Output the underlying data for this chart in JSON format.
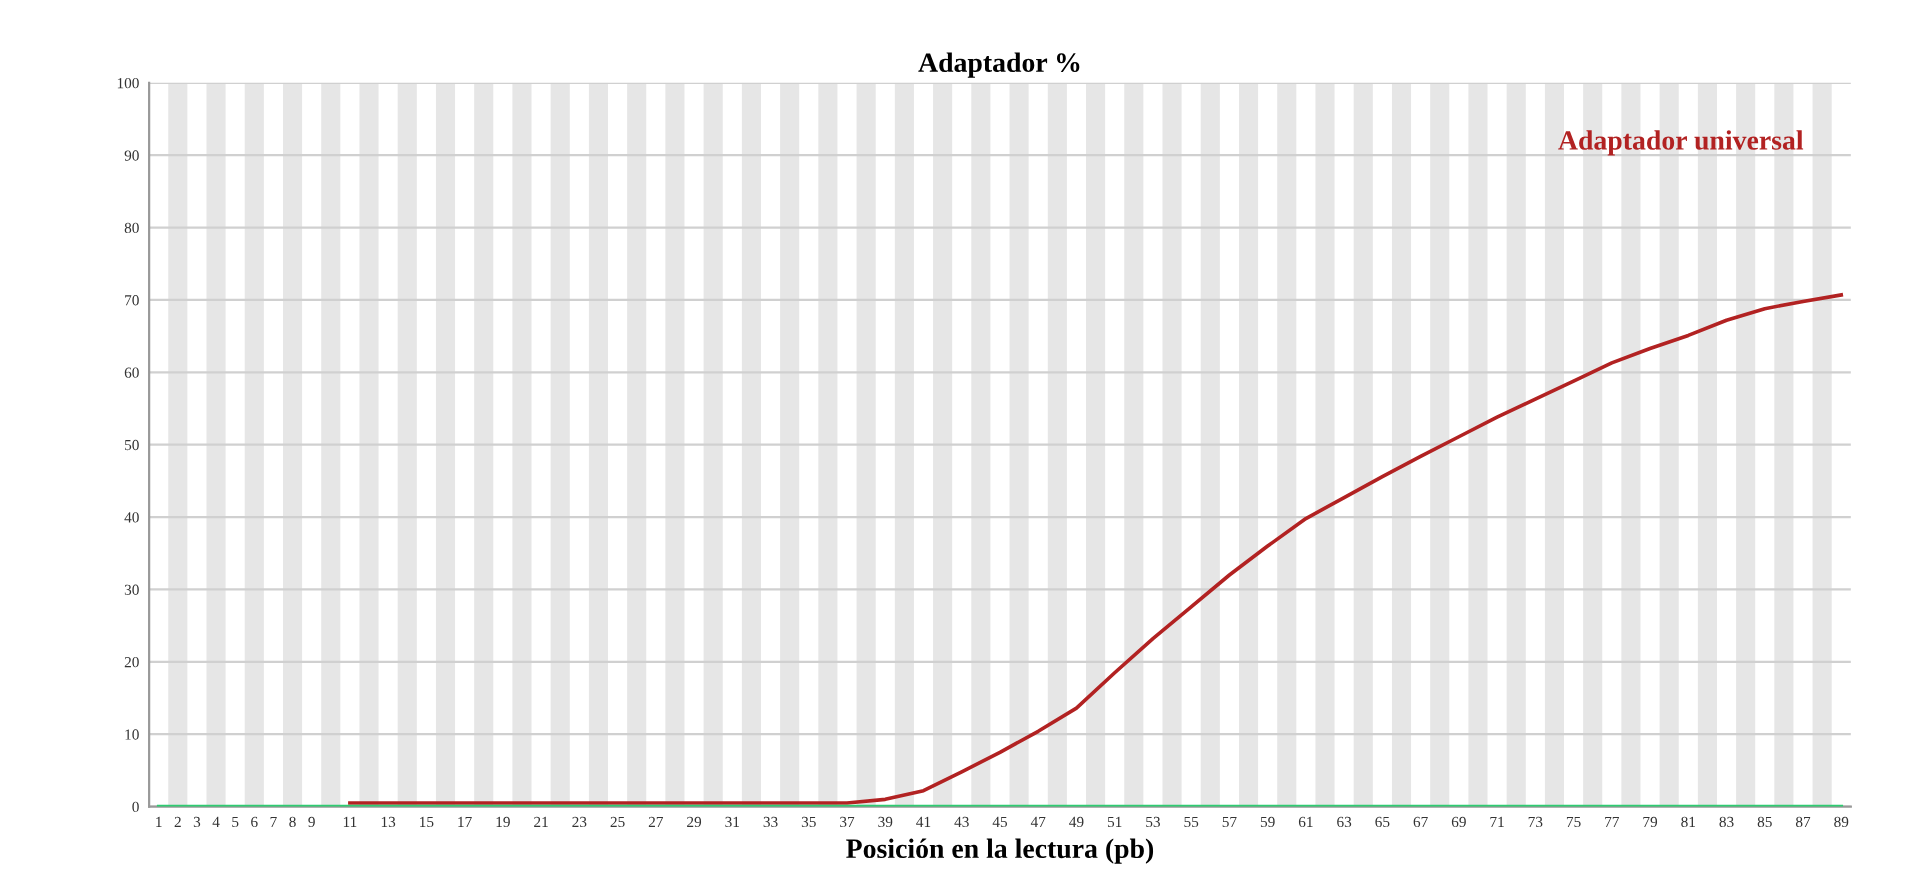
{
  "chart_data": {
    "type": "line",
    "title": "Adaptador %",
    "xlabel": "Posición en la lectura (pb)",
    "x": [
      1,
      2,
      3,
      4,
      5,
      6,
      7,
      8,
      9,
      11,
      13,
      15,
      17,
      19,
      21,
      23,
      25,
      27,
      29,
      31,
      33,
      35,
      37,
      39,
      41,
      43,
      45,
      47,
      49,
      51,
      53,
      55,
      57,
      59,
      61,
      63,
      65,
      67,
      69,
      71,
      73,
      75,
      77,
      79,
      81,
      83,
      85,
      87,
      89
    ],
    "series": [
      {
        "name": "Adaptador universal",
        "color": "#b22222",
        "values": [
          null,
          null,
          null,
          null,
          null,
          null,
          null,
          null,
          null,
          0.5,
          0.5,
          0.5,
          0.5,
          0.5,
          0.5,
          0.5,
          0.5,
          0.5,
          0.5,
          0.5,
          0.5,
          0.5,
          0.5,
          1.0,
          2.2,
          4.8,
          7.5,
          10.4,
          13.6,
          18.5,
          23.2,
          27.6,
          32,
          36,
          39.8,
          42.7,
          45.6,
          48.4,
          51.1,
          53.8,
          56.3,
          58.8,
          61.3,
          63.3,
          65.1,
          67.2,
          68.8,
          69.8,
          70.7
        ]
      },
      {
        "color": "#2ecc71",
        "values": [
          0,
          0,
          0,
          0,
          0,
          0,
          0,
          0,
          0,
          0,
          0,
          0,
          0,
          0,
          0,
          0,
          0,
          0,
          0,
          0,
          0,
          0,
          0,
          0,
          0,
          0,
          0,
          0,
          0,
          0,
          0,
          0,
          0,
          0,
          0,
          0,
          0,
          0,
          0,
          0,
          0,
          0,
          0,
          0,
          0,
          0,
          0,
          0,
          0
        ]
      }
    ],
    "xlim": [
      0.5,
      89.5
    ],
    "xticks": [
      1,
      2,
      3,
      4,
      5,
      6,
      7,
      8,
      9,
      11,
      13,
      15,
      17,
      19,
      21,
      23,
      25,
      27,
      29,
      31,
      33,
      35,
      37,
      39,
      41,
      43,
      45,
      47,
      49,
      51,
      53,
      55,
      57,
      59,
      61,
      63,
      65,
      67,
      69,
      71,
      73,
      75,
      77,
      79,
      81,
      83,
      85,
      87,
      89
    ],
    "ylim": [
      0,
      100
    ],
    "yticks": [
      0,
      10,
      20,
      30,
      40,
      50,
      60,
      70,
      80,
      90,
      100
    ],
    "grid": "y",
    "legend": "top right",
    "marker": "none",
    "line_style": "solid",
    "bands": [
      {
        "axis": "x",
        "from": 1.5,
        "to": 2.5,
        "color": "#e6e6e6"
      },
      {
        "axis": "x",
        "from": 3.5,
        "to": 4.5,
        "color": "#e6e6e6"
      },
      {
        "axis": "x",
        "from": 5.5,
        "to": 6.5,
        "color": "#e6e6e6"
      },
      {
        "axis": "x",
        "from": 7.5,
        "to": 8.5,
        "color": "#e6e6e6"
      },
      {
        "axis": "x",
        "from": 9.5,
        "to": 10.5,
        "color": "#e6e6e6"
      },
      {
        "axis": "x",
        "from": 11.5,
        "to": 12.5,
        "color": "#e6e6e6"
      },
      {
        "axis": "x",
        "from": 13.5,
        "to": 14.5,
        "color": "#e6e6e6"
      },
      {
        "axis": "x",
        "from": 15.5,
        "to": 16.5,
        "color": "#e6e6e6"
      },
      {
        "axis": "x",
        "from": 17.5,
        "to": 18.5,
        "color": "#e6e6e6"
      },
      {
        "axis": "x",
        "from": 19.5,
        "to": 20.5,
        "color": "#e6e6e6"
      },
      {
        "axis": "x",
        "from": 21.5,
        "to": 22.5,
        "color": "#e6e6e6"
      },
      {
        "axis": "x",
        "from": 23.5,
        "to": 24.5,
        "color": "#e6e6e6"
      },
      {
        "axis": "x",
        "from": 25.5,
        "to": 26.5,
        "color": "#e6e6e6"
      },
      {
        "axis": "x",
        "from": 27.5,
        "to": 28.5,
        "color": "#e6e6e6"
      },
      {
        "axis": "x",
        "from": 29.5,
        "to": 30.5,
        "color": "#e6e6e6"
      },
      {
        "axis": "x",
        "from": 31.5,
        "to": 32.5,
        "color": "#e6e6e6"
      },
      {
        "axis": "x",
        "from": 33.5,
        "to": 34.5,
        "color": "#e6e6e6"
      },
      {
        "axis": "x",
        "from": 35.5,
        "to": 36.5,
        "color": "#e6e6e6"
      },
      {
        "axis": "x",
        "from": 37.5,
        "to": 38.5,
        "color": "#e6e6e6"
      },
      {
        "axis": "x",
        "from": 39.5,
        "to": 40.5,
        "color": "#e6e6e6"
      },
      {
        "axis": "x",
        "from": 41.5,
        "to": 42.5,
        "color": "#e6e6e6"
      },
      {
        "axis": "x",
        "from": 43.5,
        "to": 44.5,
        "color": "#e6e6e6"
      },
      {
        "axis": "x",
        "from": 45.5,
        "to": 46.5,
        "color": "#e6e6e6"
      },
      {
        "axis": "x",
        "from": 47.5,
        "to": 48.5,
        "color": "#e6e6e6"
      },
      {
        "axis": "x",
        "from": 49.5,
        "to": 50.5,
        "color": "#e6e6e6"
      },
      {
        "axis": "x",
        "from": 51.5,
        "to": 52.5,
        "color": "#e6e6e6"
      },
      {
        "axis": "x",
        "from": 53.5,
        "to": 54.5,
        "color": "#e6e6e6"
      },
      {
        "axis": "x",
        "from": 55.5,
        "to": 56.5,
        "color": "#e6e6e6"
      },
      {
        "axis": "x",
        "from": 57.5,
        "to": 58.5,
        "color": "#e6e6e6"
      },
      {
        "axis": "x",
        "from": 59.5,
        "to": 60.5,
        "color": "#e6e6e6"
      },
      {
        "axis": "x",
        "from": 61.5,
        "to": 62.5,
        "color": "#e6e6e6"
      },
      {
        "axis": "x",
        "from": 63.5,
        "to": 64.5,
        "color": "#e6e6e6"
      },
      {
        "axis": "x",
        "from": 65.5,
        "to": 66.5,
        "color": "#e6e6e6"
      },
      {
        "axis": "x",
        "from": 67.5,
        "to": 68.5,
        "color": "#e6e6e6"
      },
      {
        "axis": "x",
        "from": 69.5,
        "to": 70.5,
        "color": "#e6e6e6"
      },
      {
        "axis": "x",
        "from": 71.5,
        "to": 72.5,
        "color": "#e6e6e6"
      },
      {
        "axis": "x",
        "from": 73.5,
        "to": 74.5,
        "color": "#e6e6e6"
      },
      {
        "axis": "x",
        "from": 75.5,
        "to": 76.5,
        "color": "#e6e6e6"
      },
      {
        "axis": "x",
        "from": 77.5,
        "to": 78.5,
        "color": "#e6e6e6"
      },
      {
        "axis": "x",
        "from": 79.5,
        "to": 80.5,
        "color": "#e6e6e6"
      },
      {
        "axis": "x",
        "from": 81.5,
        "to": 82.5,
        "color": "#e6e6e6"
      },
      {
        "axis": "x",
        "from": 83.5,
        "to": 84.5,
        "color": "#e6e6e6"
      },
      {
        "axis": "x",
        "from": 85.5,
        "to": 86.5,
        "color": "#e6e6e6"
      },
      {
        "axis": "x",
        "from": 87.5,
        "to": 88.5,
        "color": "#e6e6e6"
      }
    ]
  }
}
